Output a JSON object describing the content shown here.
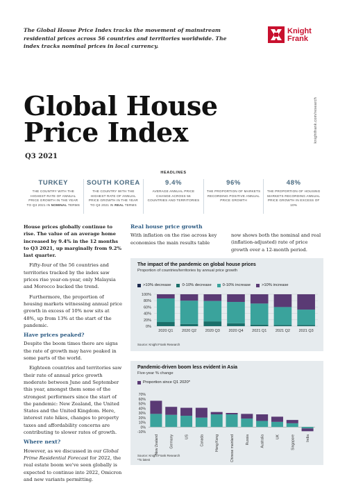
{
  "intro": "The Global House Price Index tracks the movement of mainstream residential prices across 56 countries and territories worldwide. The index tracks nominal prices in local currency.",
  "brand": {
    "name_line1": "Knight",
    "name_line2": "Frank",
    "color": "#c8102e"
  },
  "side_url": "knightfrank.com/research",
  "title_line1": "Global House",
  "title_line2": "Price Index",
  "quarter": "Q3 2021",
  "headlines_label": "HEADLINES",
  "stats": [
    {
      "value": "TURKEY",
      "desc_pre": "THE COUNTRY WITH THE HIGHEST RATE OF ANNUAL PRICE GROWTH IN THE YEAR TO Q3 2021 IN ",
      "desc_em": "NOMINAL",
      "desc_post": " TERMS"
    },
    {
      "value": "SOUTH KOREA",
      "desc_pre": "THE COUNTRY WITH THE HIGHEST RATE OF ANNUAL PRICE GROWTH IN THE YEAR TO Q3 2021 IN ",
      "desc_em": "REAL",
      "desc_post": " TERMS"
    },
    {
      "value": "9.4%",
      "desc_pre": "AVERAGE ANNUAL PRICE CHANGE ACROSS 56 COUNTRIES AND TERRITORIES",
      "desc_em": "",
      "desc_post": ""
    },
    {
      "value": "96%",
      "desc_pre": "THE PROPORTION OF MARKETS RECORDING POSITIVE ANNUAL PRICE GROWTH",
      "desc_em": "",
      "desc_post": ""
    },
    {
      "value": "48%",
      "desc_pre": "THE PROPORTION OF HOUSING MARKETS RECORDING ANNUAL PRICE GROWTH IN EXCESS OF 10%",
      "desc_em": "",
      "desc_post": ""
    }
  ],
  "col1": {
    "lead": "House prices globally continue to rise. The value of an average home increased by 9.4% in the 12 months to Q3 2021, up marginally from 9.2% last quarter.",
    "p1": "Fifty-four of the 56 countries and territories tracked by the index saw prices rise year-on-year, only Malaysia and Morocco bucked the trend.",
    "p2": "Furthermore, the proportion of housing markets witnessing annual price growth in excess of 10% now sits at 48%, up from 13% at the start of the pandemic.",
    "h2": "Have prices peaked?",
    "p3": "Despite the boom times there are signs the rate of growth may have peaked in some parts of the world.",
    "p4": "Eighteen countries and territories saw their rate of annual price growth moderate between June and September this year, amongst them some of the strongest performers since the start of the pandemic: New Zealand, the United States and the United Kingdom. Here, interest rate hikes, changes to property taxes and affordability concerns are contributing to slower rates of growth.",
    "h3": "Where next?",
    "p5_pre": "However, as we discussed in our ",
    "p5_em": "Global Prime Residential Forecast",
    "p5_post": " for 2022, the real estate boom we've seen globally is expected to continue into 2022, Omicron and new variants permitting."
  },
  "col2": {
    "h": "Real house price growth",
    "p": "With inflation on the rise across key economies the main results table"
  },
  "col3": {
    "p": "now shows both the nominal and real (inflation-adjusted) rate of price growth over a 12-month period."
  },
  "colors": {
    "dark": "#1c2b4f",
    "teal": "#1b6f6a",
    "mid": "#3aa39c",
    "purple": "#5a3a74",
    "heading": "#2b5a82",
    "panel": "#e6ebee"
  },
  "chart_data": [
    {
      "type": "bar",
      "stacked": true,
      "title": "The impact of the pandemic on global house prices",
      "subtitle": "Proportion of countries/territories by annual price growth",
      "categories": [
        "2020 Q1",
        "2020 Q2",
        "2020 Q3",
        "2020 Q4",
        "2021 Q1",
        "2021 Q2",
        "2021 Q3"
      ],
      "series": [
        {
          "name": ">10% decrease",
          "color": "#1c2b4f",
          "values": [
            0,
            0,
            0,
            0,
            0,
            0,
            0
          ]
        },
        {
          "name": "0-10% decrease",
          "color": "#1b6f6a",
          "values": [
            13,
            7,
            15,
            9,
            5,
            4,
            4
          ]
        },
        {
          "name": "0-10% increase",
          "color": "#3aa39c",
          "values": [
            74,
            73,
            64,
            67,
            66,
            56,
            48
          ]
        },
        {
          "name": ">10% increase",
          "color": "#5a3a74",
          "values": [
            13,
            20,
            21,
            24,
            29,
            40,
            48
          ]
        }
      ],
      "yticks": [
        "100%",
        "80%",
        "60%",
        "40%",
        "20%",
        "0%"
      ],
      "ylim": [
        0,
        100
      ],
      "grid": true,
      "legend": "top-left",
      "source": "Source: Knight Frank Research"
    },
    {
      "type": "bar",
      "stacked": true,
      "title": "Pandemic-driven boom less evident in Asia",
      "subtitle": "Five-year % change",
      "legend_label": "Proportion since Q1 2020*",
      "categories": [
        "New Zealand",
        "Germany",
        "US",
        "Canada",
        "Hong Kong",
        "Chinese mainland",
        "Russia",
        "Australia",
        "UK",
        "Singapore",
        "India"
      ],
      "series": [
        {
          "name": "",
          "color": "#3aa39c",
          "values": [
            28,
            26,
            24,
            20,
            27,
            27,
            18,
            13,
            11,
            8,
            -3
          ]
        },
        {
          "name": "Proportion since Q1 2020*",
          "color": "#5a3a74",
          "values": [
            28,
            17,
            17,
            21,
            5,
            3,
            10,
            14,
            11,
            7,
            -6
          ]
        }
      ],
      "yticks": [
        "70%",
        "60%",
        "50%",
        "40%",
        "30%",
        "20%",
        "10%",
        "0%",
        "-10%"
      ],
      "ylim": [
        -10,
        70
      ],
      "grid": false,
      "legend": "top-left",
      "source": "Source: Knight Frank Research",
      "note": "*To latest"
    }
  ]
}
